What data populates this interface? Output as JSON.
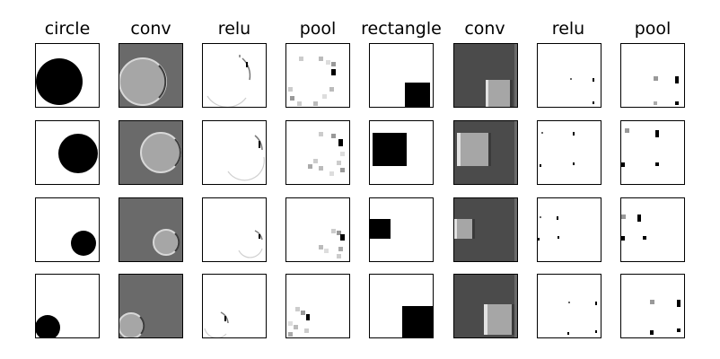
{
  "headers": [
    "circle",
    "conv",
    "relu",
    "pool",
    "rectangle",
    "conv",
    "relu",
    "pool"
  ],
  "colors": {
    "shape": "#000000",
    "conv_circle_bg": "#6a6a6a",
    "conv_rect_bg": "#4b4b4b",
    "conv_fill": "#a6a6a6",
    "highlight": "#e2e2e2",
    "shadow": "#3a3a3a"
  }
}
